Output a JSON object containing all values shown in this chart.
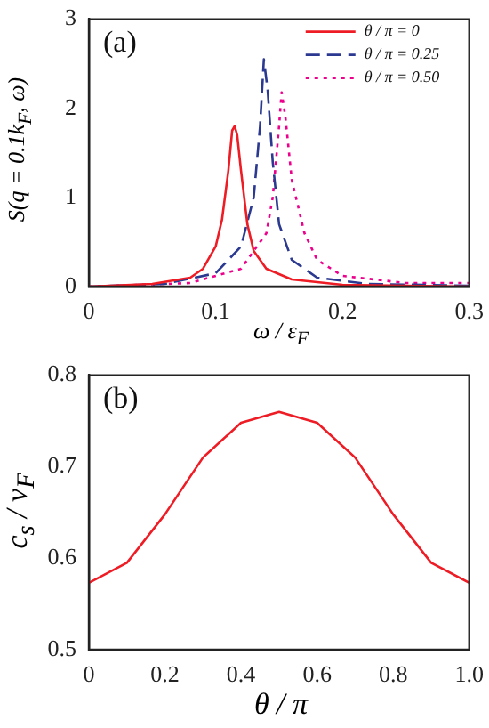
{
  "chart_data": [
    {
      "type": "line",
      "xlabel": "ω / ε$_{F}$",
      "ylabel": "S(q = 0.1k$_{F}$, ω)",
      "annotations": [
        "(a)"
      ],
      "xlim": [
        0,
        0.3
      ],
      "xticks": [
        0,
        0.1,
        0.2,
        0.3
      ],
      "ylim": [
        0,
        3
      ],
      "yticks": [
        0,
        1,
        2,
        3
      ],
      "grid": false,
      "legend": "top right",
      "marker": "none",
      "series": [
        {
          "name": "θ / π = 0",
          "color": "#ee1c25",
          "line_style": "solid",
          "x": [
            0,
            0.05,
            0.08,
            0.09,
            0.1,
            0.105,
            0.11,
            0.113,
            0.115,
            0.117,
            0.12,
            0.125,
            0.13,
            0.14,
            0.16,
            0.2,
            0.3
          ],
          "values": [
            0,
            0.03,
            0.1,
            0.2,
            0.45,
            0.75,
            1.3,
            1.75,
            1.8,
            1.7,
            1.3,
            0.7,
            0.4,
            0.2,
            0.08,
            0.02,
            0
          ]
        },
        {
          "name": "θ / π = 0.25",
          "color": "#2b3990",
          "line_style": "dashed",
          "x": [
            0,
            0.06,
            0.1,
            0.12,
            0.13,
            0.135,
            0.138,
            0.141,
            0.145,
            0.15,
            0.16,
            0.18,
            0.22,
            0.3
          ],
          "values": [
            0,
            0.03,
            0.15,
            0.45,
            1.0,
            1.8,
            2.55,
            2.2,
            1.4,
            0.7,
            0.3,
            0.1,
            0.03,
            0.01
          ]
        },
        {
          "name": "θ / π = 0.50",
          "color": "#ec008c",
          "line_style": "dotted",
          "x": [
            0,
            0.08,
            0.12,
            0.14,
            0.145,
            0.15,
            0.152,
            0.155,
            0.16,
            0.17,
            0.18,
            0.2,
            0.25,
            0.3
          ],
          "values": [
            0,
            0.04,
            0.2,
            0.6,
            1.0,
            1.8,
            2.18,
            1.9,
            1.2,
            0.6,
            0.3,
            0.12,
            0.04,
            0.04
          ]
        }
      ]
    },
    {
      "type": "line",
      "xlabel": "θ / π",
      "ylabel": "c$_{s}$ / v$_{F}$",
      "annotations": [
        "(b)"
      ],
      "xlim": [
        0,
        1
      ],
      "xticks": [
        0,
        0.2,
        0.4,
        0.6,
        0.8,
        {
          "value": 1,
          "label": "1.0"
        }
      ],
      "ylim": [
        0.5,
        0.8
      ],
      "yticks": [
        0.5,
        0.6,
        0.7,
        0.8
      ],
      "grid": false,
      "marker": "none",
      "line_style": "solid",
      "color": "#ee1c25",
      "x": [
        0,
        0.1,
        0.2,
        0.3,
        0.4,
        0.5,
        0.6,
        0.7,
        0.8,
        0.9,
        1.0
      ],
      "values": [
        0.573,
        0.595,
        0.648,
        0.71,
        0.748,
        0.76,
        0.748,
        0.71,
        0.648,
        0.595,
        0.573
      ]
    }
  ]
}
